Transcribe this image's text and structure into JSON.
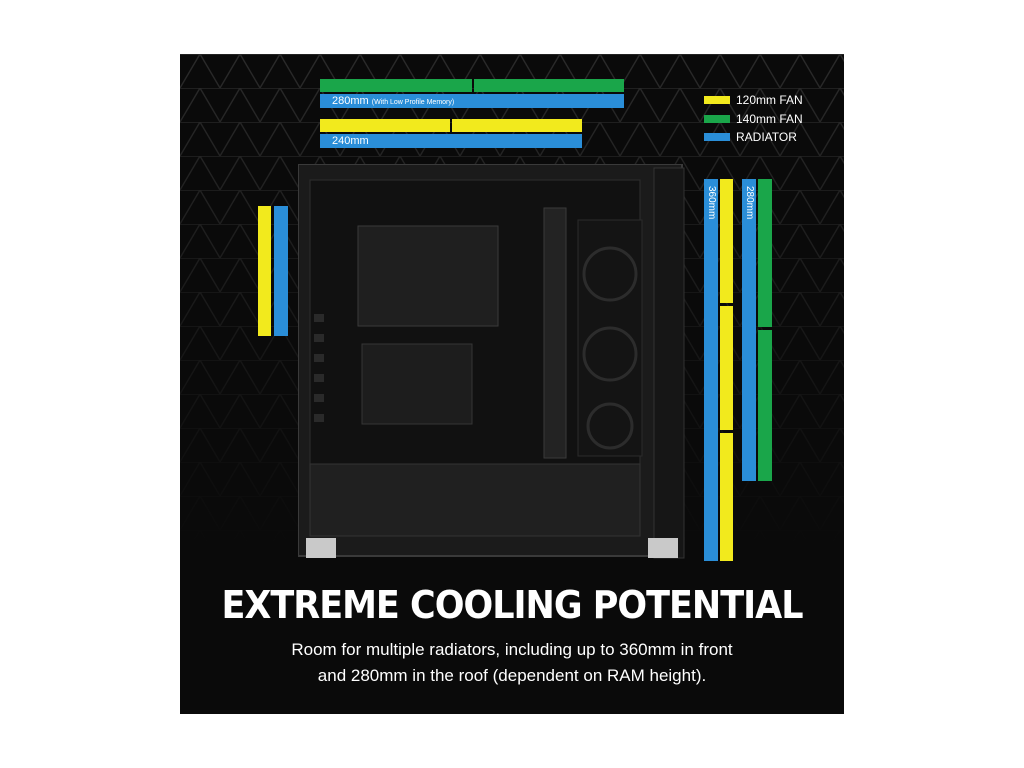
{
  "colors": {
    "yellow": "#f2ea1d",
    "green": "#1aa64a",
    "blue": "#2a8ed8",
    "background": "#0a0a0a"
  },
  "top_bars": {
    "radiator_280_label": "280mm",
    "radiator_280_note": "(With Low Profile Memory)",
    "radiator_240_label": "240mm"
  },
  "side_bars": {
    "radiator_360_label": "360mm",
    "radiator_280_label": "280mm"
  },
  "legend": {
    "fan_120": "120mm FAN",
    "fan_140": "140mm FAN",
    "radiator": "RADIATOR"
  },
  "headline": "EXTREME COOLING POTENTIAL",
  "description": {
    "line1": "Room for multiple radiators, including up to 360mm in front",
    "line2": "and 280mm in the roof (dependent on RAM height)."
  }
}
